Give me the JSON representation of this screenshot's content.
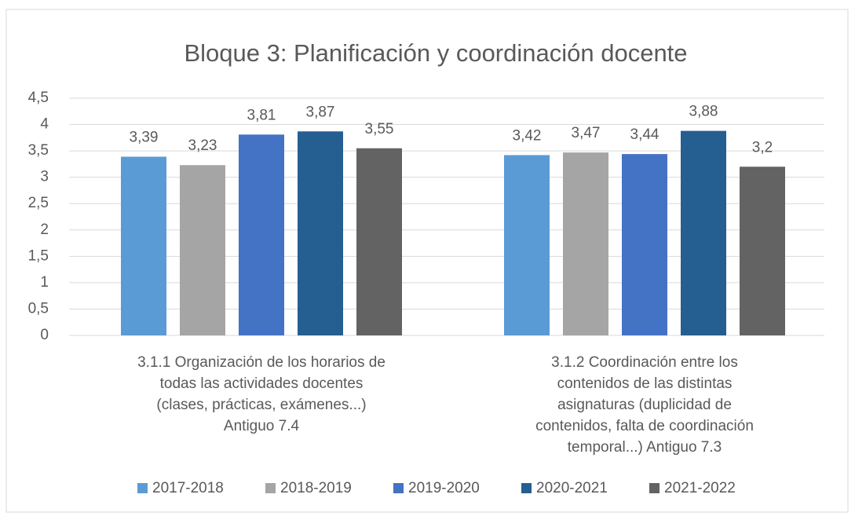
{
  "chart_data": {
    "type": "bar",
    "title": "Bloque 3: Planificación y coordinación docente",
    "categories": [
      "3.1.1 Organización de los horarios de todas las actividades docentes (clases, prácticas, exámenes...) Antiguo 7.4",
      "3.1.2 Coordinación entre los contenidos de las distintas asignaturas (duplicidad de contenidos, falta de coordinación temporal...) Antiguo 7.3"
    ],
    "series": [
      {
        "name": "2017-2018",
        "color": "#5b9bd5",
        "values": [
          3.39,
          3.42
        ],
        "value_labels": [
          "3,39",
          "3,42"
        ]
      },
      {
        "name": "2018-2019",
        "color": "#a5a5a5",
        "values": [
          3.23,
          3.47
        ],
        "value_labels": [
          "3,23",
          "3,47"
        ]
      },
      {
        "name": "2019-2020",
        "color": "#4472c4",
        "values": [
          3.81,
          3.44
        ],
        "value_labels": [
          "3,81",
          "3,44"
        ]
      },
      {
        "name": "2020-2021",
        "color": "#255e91",
        "values": [
          3.87,
          3.88
        ],
        "value_labels": [
          "3,87",
          "3,88"
        ]
      },
      {
        "name": "2021-2022",
        "color": "#636363",
        "values": [
          3.55,
          3.2
        ],
        "value_labels": [
          "3,55",
          "3,2"
        ]
      }
    ],
    "ylim": [
      0,
      4.5
    ],
    "yticks": [
      0,
      {
        "value": 0.5,
        "label": "0,5"
      },
      1,
      {
        "value": 1.5,
        "label": "1,5"
      },
      2,
      {
        "value": 2.5,
        "label": "2,5"
      },
      3,
      {
        "value": 3.5,
        "label": "3,5"
      },
      4,
      {
        "value": 4.5,
        "label": "4,5"
      }
    ],
    "grid": true,
    "legend": "bottom"
  }
}
